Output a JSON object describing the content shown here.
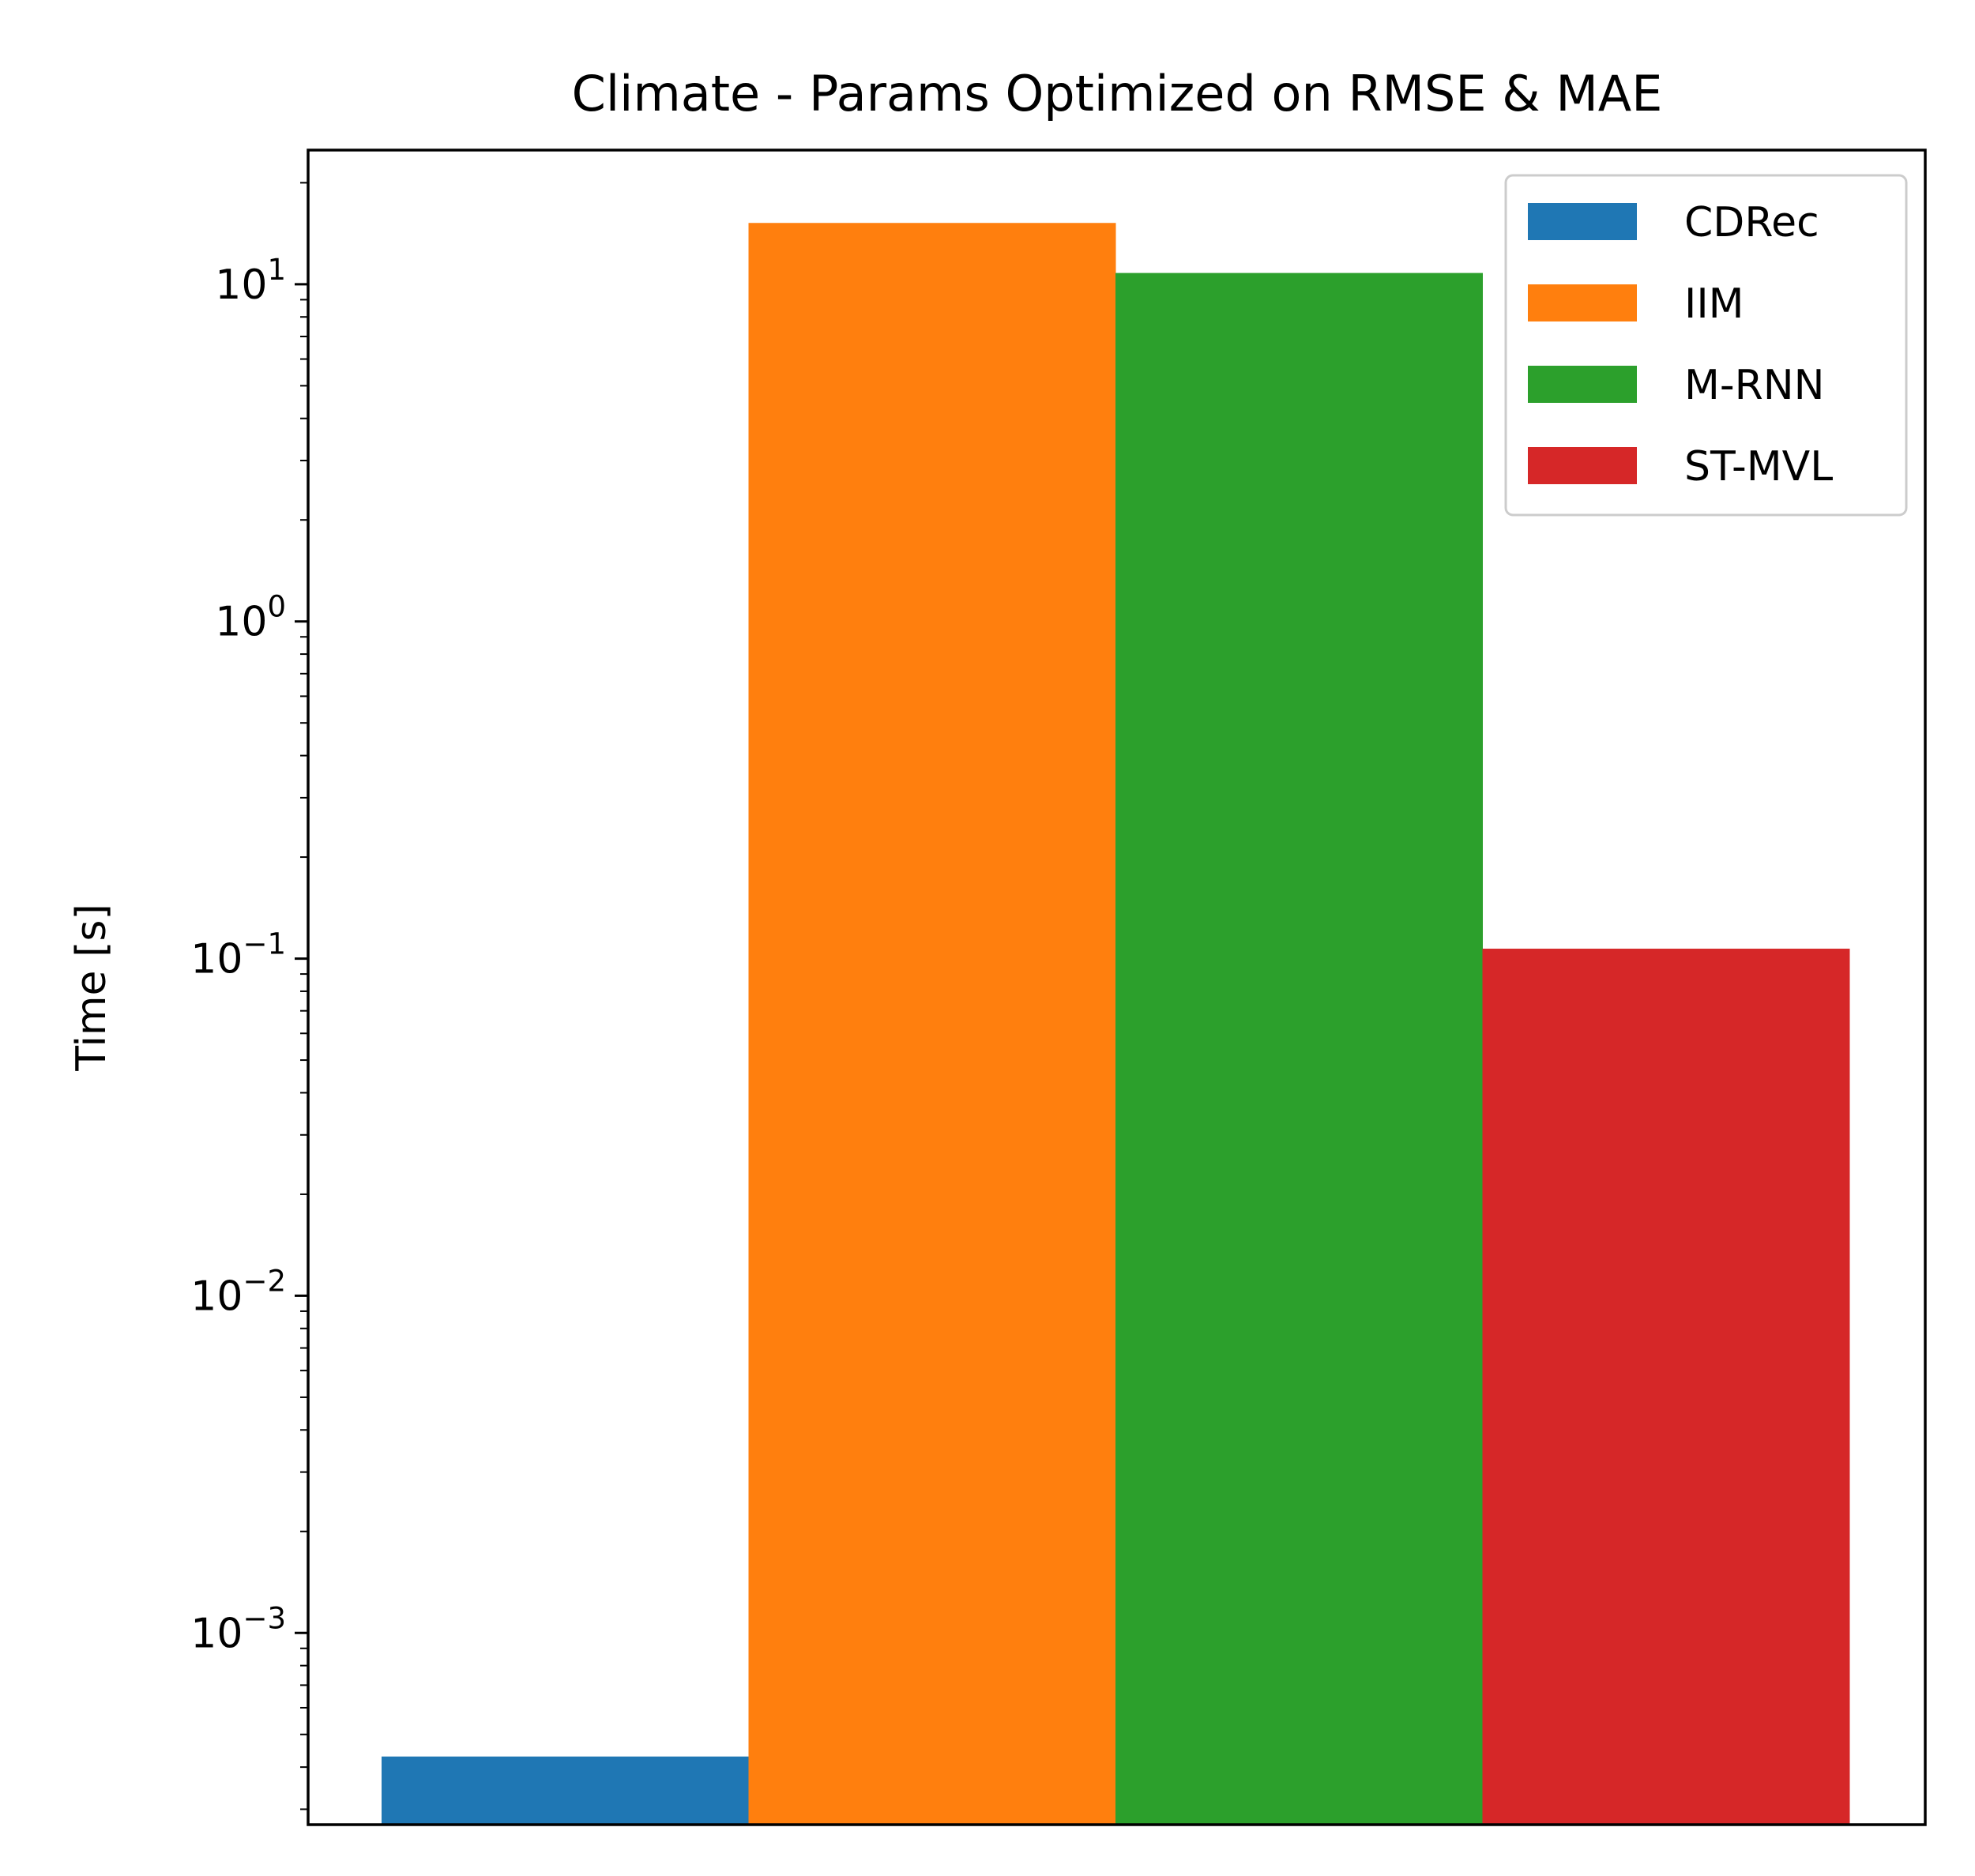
{
  "chart_data": {
    "type": "bar",
    "title": "Climate - Params Optimized on RMSE & MAE",
    "xlabel": "",
    "ylabel": "Time [s]",
    "yscale": "log",
    "ylim": [
      0.00027,
      25
    ],
    "yticks": [
      {
        "value": 0.001,
        "base": "10",
        "exp": "−3"
      },
      {
        "value": 0.01,
        "base": "10",
        "exp": "−2"
      },
      {
        "value": 0.1,
        "base": "10",
        "exp": "−1"
      },
      {
        "value": 1,
        "base": "10",
        "exp": "0"
      },
      {
        "value": 10,
        "base": "10",
        "exp": "1"
      }
    ],
    "grid": false,
    "legend_position": "top-right",
    "series": [
      {
        "name": "CDRec",
        "value": 0.00043,
        "color": "#1f77b4"
      },
      {
        "name": "IIM",
        "value": 15.2,
        "color": "#ff7f0e"
      },
      {
        "name": "M-RNN",
        "value": 10.8,
        "color": "#2ca02c"
      },
      {
        "name": "ST-MVL",
        "value": 0.107,
        "color": "#d62728"
      }
    ]
  }
}
